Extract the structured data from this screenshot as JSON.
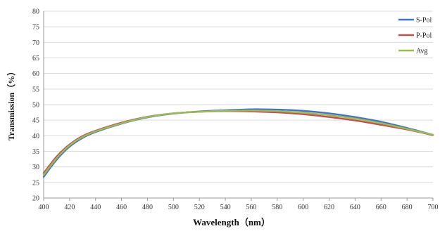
{
  "chart_data": {
    "type": "line",
    "xlabel": "Wavelength（nm）",
    "ylabel": "Transmission（%）",
    "xlim": [
      400,
      700
    ],
    "ylim": [
      20,
      80
    ],
    "xticks": [
      400,
      420,
      440,
      460,
      480,
      500,
      520,
      540,
      560,
      580,
      600,
      620,
      640,
      660,
      680,
      700
    ],
    "yticks": [
      20,
      25,
      30,
      35,
      40,
      45,
      50,
      55,
      60,
      65,
      70,
      75,
      80
    ],
    "grid": "horizontal",
    "legend_position": "top-right",
    "x": [
      400,
      410,
      420,
      430,
      440,
      460,
      480,
      500,
      520,
      540,
      560,
      580,
      600,
      620,
      640,
      660,
      680,
      700
    ],
    "series": [
      {
        "name": "S-Pol",
        "color": "#4472c4",
        "values": [
          26.8,
          32.3,
          36.5,
          39.3,
          41.2,
          43.9,
          45.9,
          47.1,
          47.8,
          48.2,
          48.5,
          48.4,
          48.0,
          47.2,
          46.0,
          44.5,
          42.5,
          40.3
        ]
      },
      {
        "name": "P-Pol",
        "color": "#c0504d",
        "values": [
          28.0,
          33.3,
          37.2,
          39.9,
          41.6,
          44.2,
          46.1,
          47.2,
          47.7,
          47.9,
          47.8,
          47.5,
          46.9,
          46.0,
          44.9,
          43.5,
          42.0,
          40.2
        ]
      },
      {
        "name": "Avg",
        "color": "#9bbb59",
        "values": [
          27.4,
          32.8,
          36.9,
          39.6,
          41.4,
          44.0,
          46.0,
          47.2,
          47.7,
          48.0,
          48.1,
          47.9,
          47.4,
          46.6,
          45.5,
          44.0,
          42.2,
          40.3
        ]
      }
    ]
  }
}
